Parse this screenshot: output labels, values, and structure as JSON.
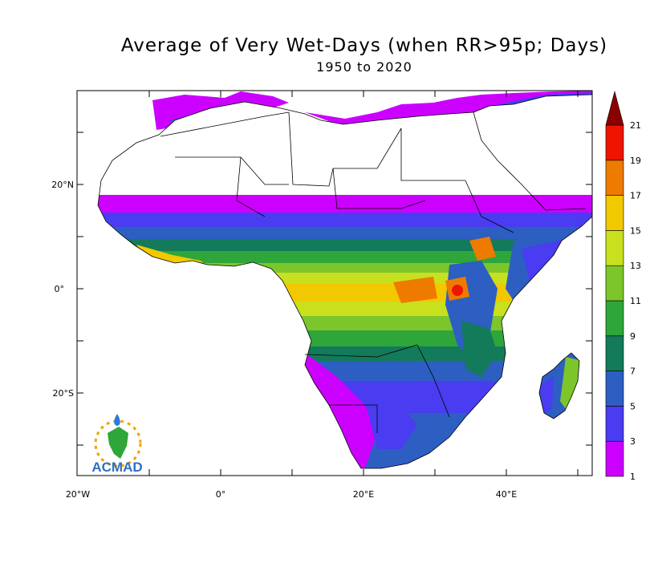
{
  "title": "Average of Very Wet-Days (when RR>95p; Days)",
  "subtitle": "1950 to 2020",
  "axes": {
    "x_ticks": [
      "20°W",
      "0°",
      "20°E",
      "40°E"
    ],
    "y_ticks": [
      "20°N",
      "0°",
      "20°S"
    ]
  },
  "colorbar": {
    "labels": [
      "1",
      "3",
      "5",
      "7",
      "9",
      "11",
      "13",
      "15",
      "17",
      "19",
      "21"
    ],
    "colors": [
      "#cc00ff",
      "#4a3cf0",
      "#2d5ec2",
      "#137a5a",
      "#2ea63a",
      "#7cc62c",
      "#c8e01e",
      "#f2c800",
      "#ee7a00",
      "#ee1400"
    ],
    "extend_color": "#8b0000"
  },
  "logo": {
    "text": "ACMAD"
  },
  "colors": {
    "frame": "#000000",
    "land_dry": "#ffffff"
  }
}
